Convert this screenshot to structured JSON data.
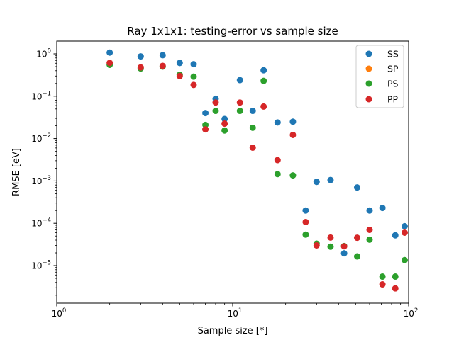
{
  "chart_data": {
    "type": "scatter",
    "title": "Ray 1x1x1: testing-error vs sample size",
    "xlabel": "Sample size [*]",
    "ylabel": "RMSE [eV]",
    "xscale": "log",
    "yscale": "log",
    "xlim": [
      1,
      100
    ],
    "ylim": [
      1.3e-06,
      2
    ],
    "grid": false,
    "legend_position": "top-right",
    "x_ticks": [
      {
        "value": 1,
        "base": "10",
        "exp": "0"
      },
      {
        "value": 10,
        "base": "10",
        "exp": "1"
      },
      {
        "value": 100,
        "base": "10",
        "exp": "2"
      }
    ],
    "y_ticks": [
      {
        "value": 1e-05,
        "base": "10",
        "exp": "−5"
      },
      {
        "value": 0.0001,
        "base": "10",
        "exp": "−4"
      },
      {
        "value": 0.001,
        "base": "10",
        "exp": "−3"
      },
      {
        "value": 0.01,
        "base": "10",
        "exp": "−2"
      },
      {
        "value": 0.1,
        "base": "10",
        "exp": "−1"
      },
      {
        "value": 1,
        "base": "10",
        "exp": "0"
      }
    ],
    "series": [
      {
        "name": "SS",
        "color": "#1f77b4",
        "points": [
          [
            2,
            1.07
          ],
          [
            3,
            0.87
          ],
          [
            4,
            0.93
          ],
          [
            5,
            0.61
          ],
          [
            6,
            0.57
          ],
          [
            7,
            0.04
          ],
          [
            8,
            0.087
          ],
          [
            9,
            0.029
          ],
          [
            11,
            0.24
          ],
          [
            13,
            0.045
          ],
          [
            15,
            0.41
          ],
          [
            18,
            0.024
          ],
          [
            22,
            0.025
          ],
          [
            26,
            0.0002
          ],
          [
            30,
            0.00095
          ],
          [
            36,
            0.00105
          ],
          [
            43,
            1.95e-05
          ],
          [
            51,
            0.0007
          ],
          [
            60,
            0.0002
          ],
          [
            71,
            0.00023
          ],
          [
            84,
            5.2e-05
          ],
          [
            95,
            8.5e-05
          ]
        ]
      },
      {
        "name": "SP",
        "color": "#ff7f0e",
        "points": []
      },
      {
        "name": "PS",
        "color": "#2ca02c",
        "points": [
          [
            2,
            0.55
          ],
          [
            3,
            0.45
          ],
          [
            4,
            0.5
          ],
          [
            5,
            0.32
          ],
          [
            6,
            0.29
          ],
          [
            7,
            0.021
          ],
          [
            8,
            0.045
          ],
          [
            9,
            0.0155
          ],
          [
            11,
            0.045
          ],
          [
            13,
            0.018
          ],
          [
            15,
            0.23
          ],
          [
            18,
            0.00145
          ],
          [
            22,
            0.00135
          ],
          [
            26,
            5.4e-05
          ],
          [
            30,
            3.3e-05
          ],
          [
            36,
            2.8e-05
          ],
          [
            43,
            2.9e-05
          ],
          [
            51,
            1.65e-05
          ],
          [
            60,
            4.1e-05
          ],
          [
            71,
            5.5e-06
          ],
          [
            84,
            5.5e-06
          ],
          [
            95,
            1.35e-05
          ]
        ]
      },
      {
        "name": "PP",
        "color": "#d62728",
        "points": [
          [
            2,
            0.61
          ],
          [
            3,
            0.48
          ],
          [
            4,
            0.52
          ],
          [
            5,
            0.3
          ],
          [
            6,
            0.185
          ],
          [
            7,
            0.0165
          ],
          [
            8,
            0.071
          ],
          [
            9,
            0.0225
          ],
          [
            11,
            0.071
          ],
          [
            13,
            0.0061
          ],
          [
            15,
            0.057
          ],
          [
            18,
            0.0031
          ],
          [
            22,
            0.0122
          ],
          [
            26,
            0.000107
          ],
          [
            30,
            3e-05
          ],
          [
            36,
            4.6e-05
          ],
          [
            43,
            2.85e-05
          ],
          [
            51,
            4.55e-05
          ],
          [
            60,
            7e-05
          ],
          [
            71,
            3.6e-06
          ],
          [
            84,
            2.9e-06
          ],
          [
            95,
            6e-05
          ]
        ]
      }
    ]
  }
}
